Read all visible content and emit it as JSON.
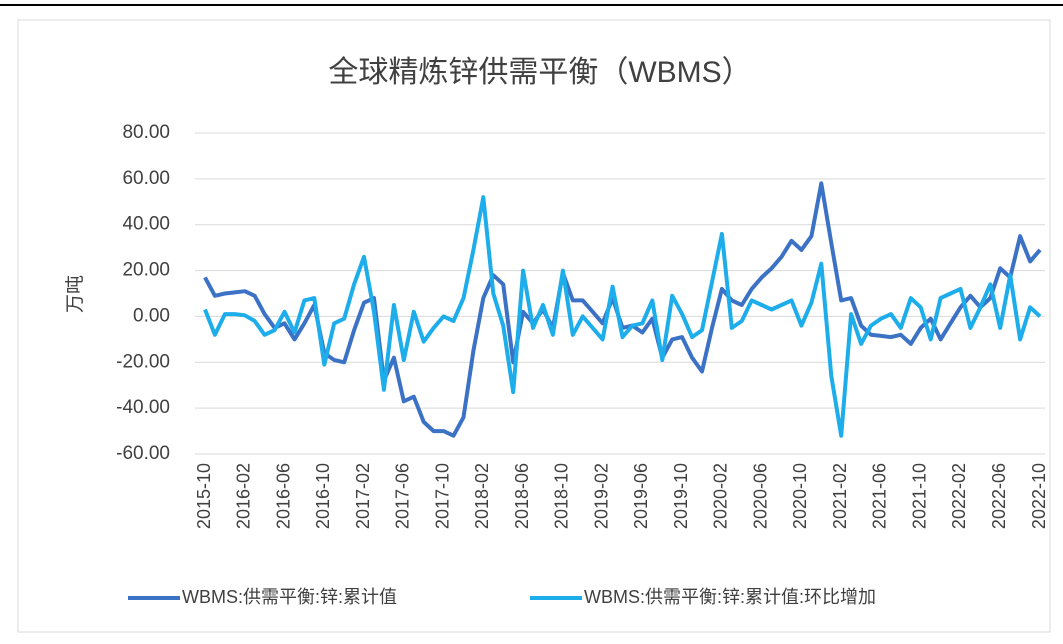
{
  "chart_data": {
    "type": "line",
    "title": "全球精炼锌供需平衡（WBMS）",
    "y_label": "万吨",
    "categories": [
      "2015-10",
      null,
      null,
      null,
      "2016-02",
      null,
      null,
      null,
      "2016-06",
      null,
      null,
      null,
      "2016-10",
      null,
      null,
      null,
      "2017-02",
      null,
      null,
      null,
      "2017-06",
      null,
      null,
      null,
      "2017-10",
      null,
      null,
      null,
      "2018-02",
      null,
      null,
      null,
      "2018-06",
      null,
      null,
      null,
      "2018-10",
      null,
      null,
      null,
      "2019-02",
      null,
      null,
      null,
      "2019-06",
      null,
      null,
      null,
      "2019-10",
      null,
      null,
      null,
      "2020-02",
      null,
      null,
      null,
      "2020-06",
      null,
      null,
      null,
      "2020-10",
      null,
      null,
      null,
      "2021-02",
      null,
      null,
      null,
      "2021-06",
      null,
      null,
      null,
      "2021-10",
      null,
      null,
      null,
      "2022-02",
      null,
      null,
      null,
      "2022-06",
      null,
      null,
      null,
      "2022-10"
    ],
    "series": [
      {
        "name": "WBMS:供需平衡:锌:累计值",
        "color": "#3b72c6",
        "values": [
          17,
          9,
          10,
          10.5,
          11,
          9,
          1,
          -5,
          -3,
          -10,
          -3,
          5,
          -16,
          -19,
          -20,
          -6,
          6,
          8,
          -28,
          -18,
          -37,
          -35,
          -46,
          -50,
          -50,
          -52,
          -44,
          -15,
          8,
          18,
          14,
          -20,
          2,
          -3,
          3,
          -5,
          19,
          7,
          7,
          2,
          -3,
          8,
          -5,
          -4,
          -7,
          -1,
          -18,
          -10,
          -9,
          -18,
          -24,
          -5,
          12,
          7,
          5,
          12,
          17,
          21,
          26,
          33,
          29,
          35,
          58,
          32,
          7,
          8,
          -4,
          -8,
          -8.5,
          -9,
          -8,
          -12,
          -5,
          -1,
          -10,
          -3,
          4,
          9,
          4,
          8,
          21,
          17,
          35,
          24,
          29
        ]
      },
      {
        "name": "WBMS:供需平衡:锌:累计值:环比增加",
        "color": "#1dadea",
        "values": [
          3,
          -8,
          1,
          1,
          0.5,
          -2,
          -8,
          -6,
          2,
          -7,
          7,
          8,
          -21,
          -3,
          -1,
          14,
          26,
          2,
          -32,
          5,
          -19,
          2,
          -11,
          -5,
          0,
          -2,
          8,
          29,
          52,
          10,
          -4,
          -33,
          20,
          -5,
          5,
          -8,
          20,
          -8,
          0,
          -5,
          -10,
          13,
          -9,
          -4,
          -3,
          7,
          -19,
          9,
          1,
          -9,
          -6,
          15,
          36,
          -5,
          -2,
          7,
          5,
          3,
          5,
          7,
          -4,
          6,
          23,
          -26,
          -52,
          1,
          -12,
          -4,
          -1,
          1,
          -5,
          8,
          4,
          -10,
          8,
          10,
          12,
          -5,
          4,
          14,
          -5,
          18,
          -10,
          4,
          0
        ]
      }
    ],
    "ylim": [
      -60,
      80
    ],
    "yticks": [
      {
        "value": -60,
        "label": "-60.00"
      },
      {
        "value": -40,
        "label": "-40.00"
      },
      {
        "value": -20,
        "label": "-20.00"
      },
      {
        "value": 0,
        "label": "0.00"
      },
      {
        "value": 20,
        "label": "20.00"
      },
      {
        "value": 40,
        "label": "40.00"
      },
      {
        "value": 60,
        "label": "60.00"
      },
      {
        "value": 80,
        "label": "80.00"
      }
    ],
    "grid": true
  }
}
